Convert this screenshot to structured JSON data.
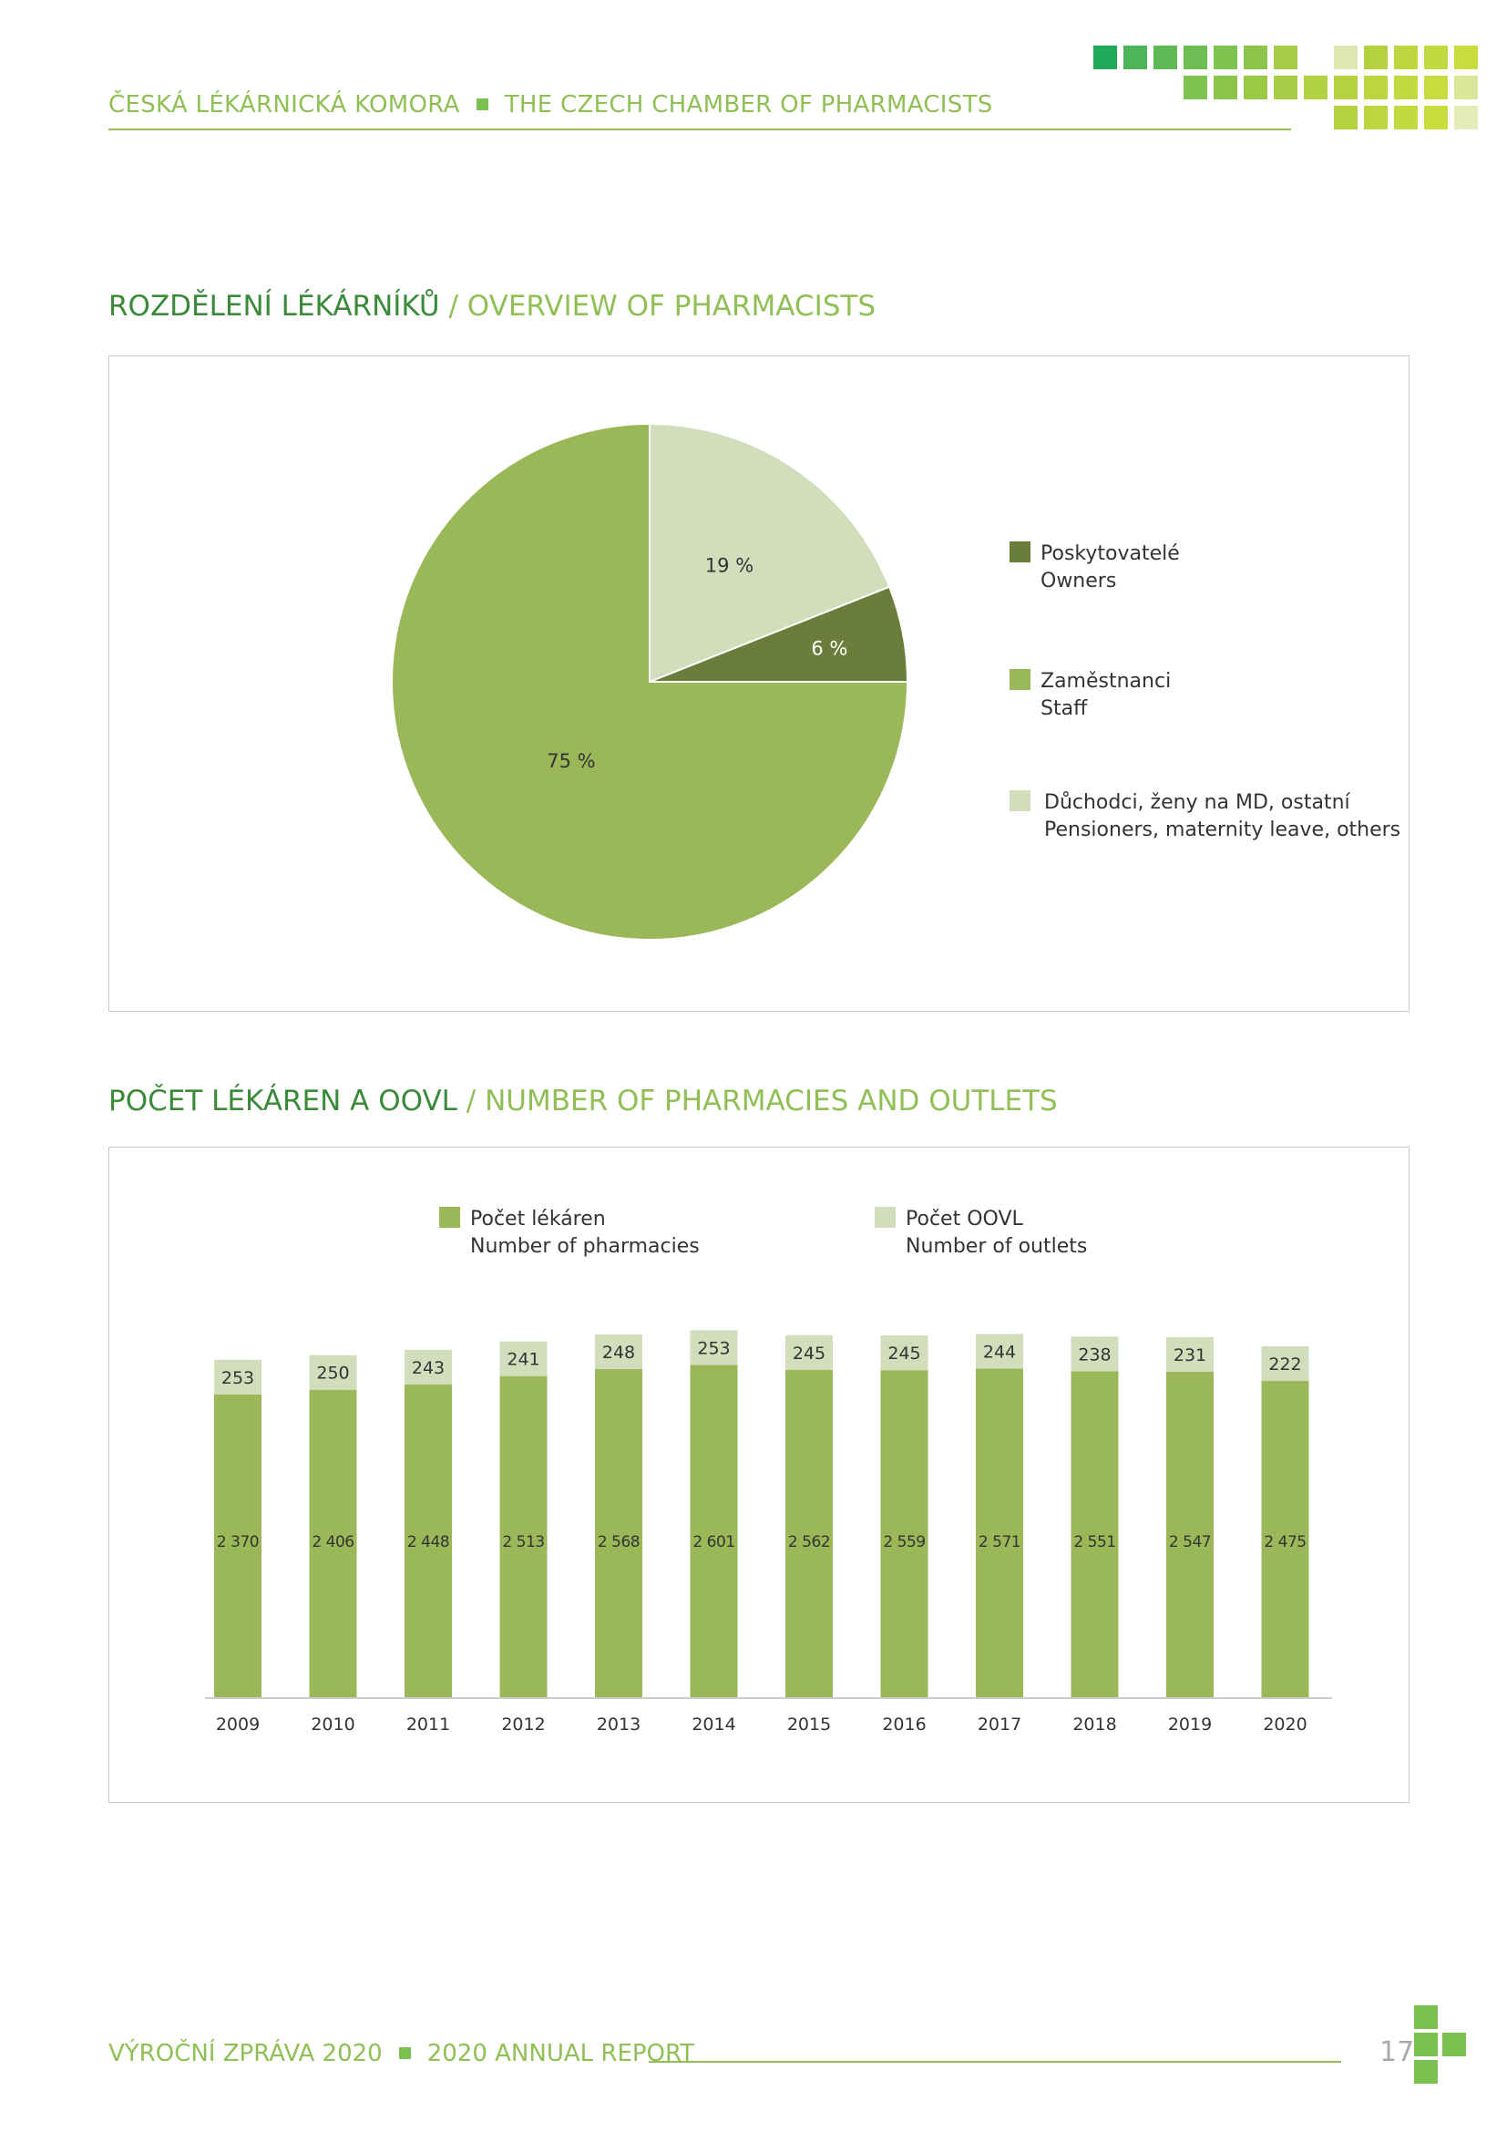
{
  "header": {
    "org_cz": "ČESKÁ LÉKÁRNICKÁ KOMORA",
    "org_en": "THE CZECH CHAMBER OF PHARMACISTS"
  },
  "colors": {
    "dark_green": "#6a7d3a",
    "mid_green": "#9ab858",
    "light_green": "#d2ddbc",
    "title_green": "#3a8a3a",
    "accent_green": "#8fbf55"
  },
  "section1": {
    "title_cz": "ROZDĚLENÍ  LÉKÁRNÍKŮ",
    "title_en": "/ OVERVIEW OF PHARMACISTS"
  },
  "section2": {
    "title_cz": "POČET LÉKÁREN A OOVL",
    "title_en": "/ NUMBER OF PHARMACIES AND OUTLETS"
  },
  "chart_data": [
    {
      "type": "pie",
      "slices": [
        {
          "label_cz": "Poskytovatelé",
          "label_en": "Owners",
          "value": 6,
          "display": "6 %",
          "color": "#6a7d3a"
        },
        {
          "label_cz": "Zaměstnanci",
          "label_en": "Staff",
          "value": 75,
          "display": "75 %",
          "color": "#9ab858"
        },
        {
          "label_cz": "Důchodci, ženy na MD, ostatní",
          "label_en": "Pensioners, maternity leave, others",
          "value": 19,
          "display": "19 %",
          "color": "#d2ddbc"
        }
      ],
      "legend_position": "right"
    },
    {
      "type": "bar",
      "stacked": true,
      "categories": [
        "2009",
        "2010",
        "2011",
        "2012",
        "2013",
        "2014",
        "2015",
        "2016",
        "2017",
        "2018",
        "2019",
        "2020"
      ],
      "series": [
        {
          "name_cz": "Počet lékáren",
          "name_en": "Number of pharmacies",
          "color": "#9ab858",
          "values": [
            2370,
            2406,
            2448,
            2513,
            2568,
            2601,
            2562,
            2559,
            2571,
            2551,
            2547,
            2475
          ],
          "labels": [
            "2 370",
            "2 406",
            "2 448",
            "2 513",
            "2 568",
            "2 601",
            "2 562",
            "2 559",
            "2 571",
            "2 551",
            "2 547",
            "2 475"
          ]
        },
        {
          "name_cz": "Počet OOVL",
          "name_en": "Number of outlets",
          "color": "#d2ddbc",
          "values": [
            253,
            250,
            243,
            241,
            248,
            253,
            245,
            245,
            244,
            238,
            231,
            222
          ],
          "labels": [
            "253",
            "250",
            "243",
            "241",
            "248",
            "253",
            "245",
            "245",
            "244",
            "238",
            "231",
            "222"
          ]
        }
      ],
      "legend_position": "top",
      "grid": false
    }
  ],
  "footer": {
    "report_cz": "VÝROČNÍ ZPRÁVA 2020",
    "report_en": "2020 ANNUAL REPORT",
    "page_number": "17"
  }
}
